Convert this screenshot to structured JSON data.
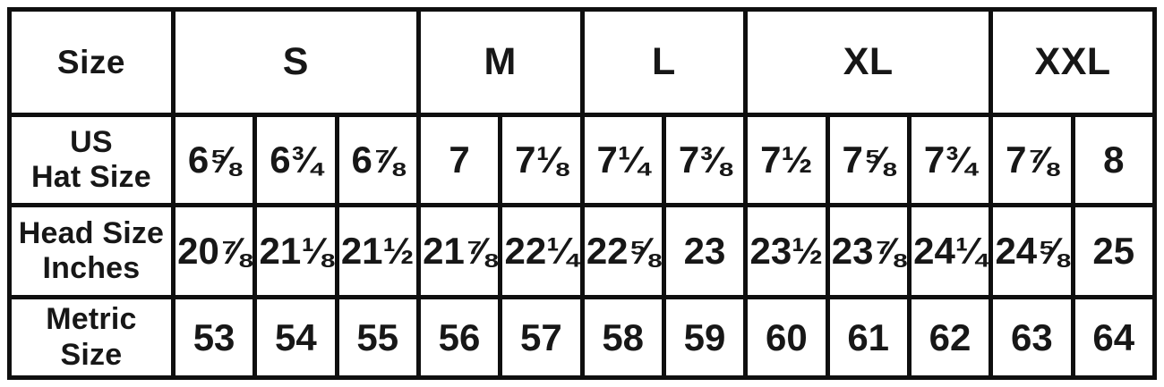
{
  "chart_data": {
    "type": "table",
    "corner_label": "Size",
    "size_groups": [
      {
        "label": "S",
        "span": 3
      },
      {
        "label": "M",
        "span": 2
      },
      {
        "label": "L",
        "span": 2
      },
      {
        "label": "XL",
        "span": 3
      },
      {
        "label": "XXL",
        "span": 2
      }
    ],
    "rows": [
      {
        "label": "US Hat Size",
        "label_lines": [
          "US",
          "Hat Size"
        ],
        "values": [
          "6⅝",
          "6¾",
          "6⅞",
          "7",
          "7⅛",
          "7¼",
          "7⅜",
          "7½",
          "7⅝",
          "7¾",
          "7⅞",
          "8"
        ]
      },
      {
        "label": "Head Size Inches",
        "label_lines": [
          "Head Size",
          "Inches"
        ],
        "values": [
          "20⅞",
          "21⅛",
          "21½",
          "21⅞",
          "22¼",
          "22⅝",
          "23",
          "23½",
          "23⅞",
          "24¼",
          "24⅝",
          "25"
        ]
      },
      {
        "label": "Metric Size",
        "label_lines": [
          "Metric",
          "Size"
        ],
        "values": [
          "53",
          "54",
          "55",
          "56",
          "57",
          "58",
          "59",
          "60",
          "61",
          "62",
          "63",
          "64"
        ]
      }
    ]
  },
  "colors": {
    "border": "#0f0f0f",
    "text": "#171717",
    "background": "#ffffff"
  }
}
